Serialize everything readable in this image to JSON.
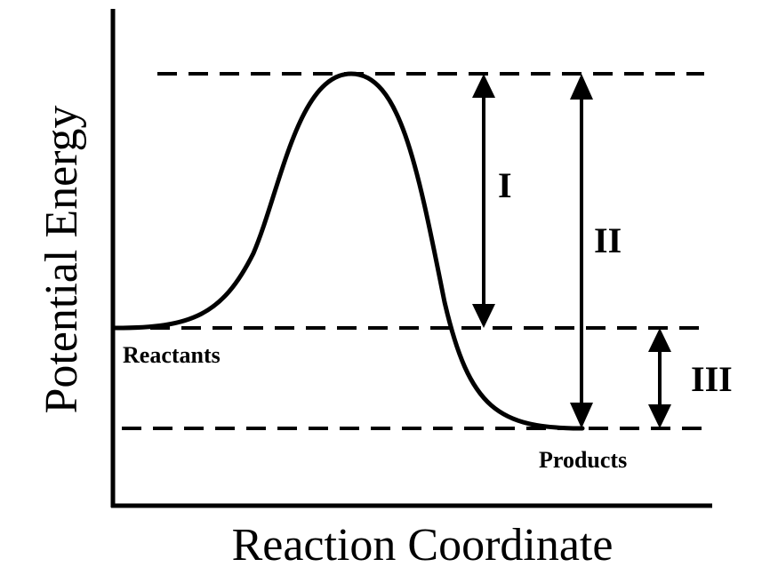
{
  "diagram": {
    "type": "reaction-energy-diagram",
    "axes": {
      "x_label": "Reaction Coordinate",
      "y_label": "Potential Energy"
    },
    "states": {
      "reactants": "Reactants",
      "products": "Products"
    },
    "intervals": {
      "one": "I",
      "two": "II",
      "three": "III"
    }
  }
}
